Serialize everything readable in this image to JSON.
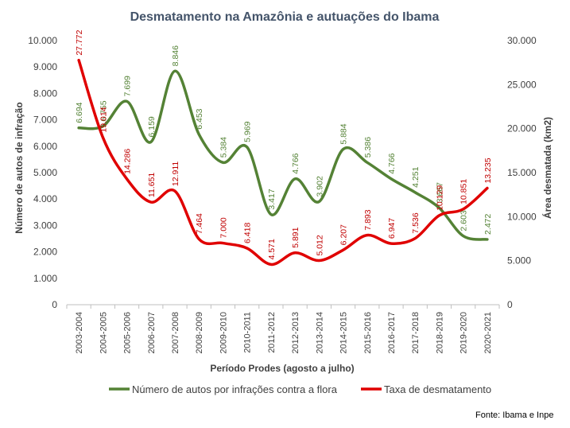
{
  "chart_data": {
    "type": "line",
    "title": "Desmatamento na Amazônia e autuações do Ibama",
    "xlabel": "Período Prodes (agosto a julho)",
    "ylabel_left": "Número de autos de infração",
    "ylabel_right": "Área desmatada (km2)",
    "ylim_left": [
      0,
      10000
    ],
    "ylim_right": [
      0,
      30000
    ],
    "yticks_left": [
      "0",
      "1.000",
      "2.000",
      "3.000",
      "4.000",
      "5.000",
      "6.000",
      "7.000",
      "8.000",
      "9.000",
      "10.000"
    ],
    "yticks_right": [
      "0",
      "5.000",
      "10.000",
      "15.000",
      "20.000",
      "25.000",
      "30.000"
    ],
    "categories": [
      "2003-2004",
      "2004-2005",
      "2005-2006",
      "2006-2007",
      "2007-2008",
      "2008-2009",
      "2009-2010",
      "2010-2011",
      "2011-2012",
      "2012-2013",
      "2013-2014",
      "2014-2015",
      "2015-2016",
      "2016-2017",
      "2017-2018",
      "2018-2019",
      "2019-2020",
      "2020-2021"
    ],
    "series": [
      {
        "name": "Número de autos por infrações contra a flora",
        "axis": "left",
        "color": "#548235",
        "values": [
          6694,
          6755,
          7699,
          6159,
          8846,
          6453,
          5384,
          5969,
          3417,
          4766,
          3902,
          5884,
          5386,
          4766,
          4251,
          3667,
          2603,
          2472
        ],
        "labels": [
          "6.694",
          "6.755",
          "7.699",
          "6.159",
          "8.846",
          "6.453",
          "5.384",
          "5.969",
          "3.417",
          "4.766",
          "3.902",
          "5.884",
          "5.386",
          "4.766",
          "4.251",
          "3.667",
          "2.603",
          "2.472"
        ]
      },
      {
        "name": "Taxa de desmatamento",
        "axis": "right",
        "color": "#e00000",
        "values": [
          27772,
          19014,
          14286,
          11651,
          12911,
          7464,
          7000,
          6418,
          4571,
          5891,
          5012,
          6207,
          7893,
          6947,
          7536,
          10129,
          10851,
          13235
        ],
        "labels": [
          "27.772",
          "19.014",
          "14.286",
          "11.651",
          "12.911",
          "7.464",
          "7.000",
          "6.418",
          "4.571",
          "5.891",
          "5.012",
          "6.207",
          "7.893",
          "6.947",
          "7.536",
          "10.129",
          "10.851",
          "13.235"
        ]
      }
    ],
    "legend": "bottom",
    "source": "Fonte:  Ibama e Inpe"
  }
}
